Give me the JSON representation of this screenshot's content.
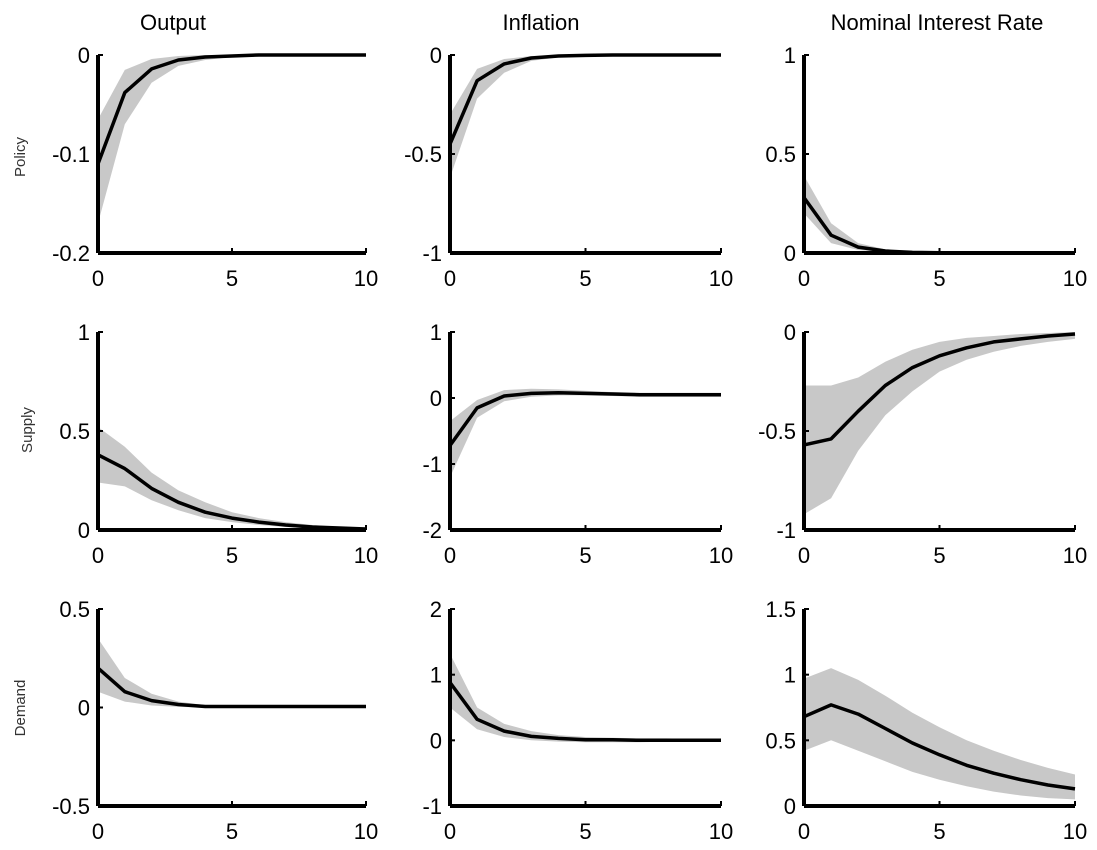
{
  "columns": [
    "Output",
    "Inflation",
    "Nominal Interest Rate"
  ],
  "rows": [
    "Policy",
    "Supply",
    "Demand"
  ],
  "colors": {
    "band": "#c8c8c8",
    "line": "#000000",
    "axis": "#000000"
  },
  "chart_data": [
    {
      "type": "area",
      "row": "Policy",
      "column": "Output",
      "ylim": [
        -0.2,
        0
      ],
      "yticks": [
        -0.2,
        -0.1,
        0
      ],
      "ytick_labels": [
        "-0.2",
        "-0.1",
        "0"
      ],
      "xlim": [
        0,
        10
      ],
      "xticks": [
        0,
        5,
        10
      ],
      "xtick_labels": [
        "0",
        "5",
        "10"
      ],
      "x": [
        0,
        1,
        2,
        3,
        4,
        5,
        6,
        7,
        8,
        9,
        10
      ],
      "median": [
        -0.11,
        -0.038,
        -0.014,
        -0.005,
        -0.002,
        -0.001,
        0,
        0,
        0,
        0,
        0
      ],
      "lower": [
        -0.17,
        -0.07,
        -0.028,
        -0.011,
        -0.005,
        -0.002,
        -0.001,
        0,
        0,
        0,
        0
      ],
      "upper": [
        -0.065,
        -0.015,
        -0.004,
        -0.001,
        0,
        0,
        0,
        0,
        0,
        0,
        0
      ]
    },
    {
      "type": "area",
      "row": "Policy",
      "column": "Inflation",
      "ylim": [
        -1,
        0
      ],
      "yticks": [
        -1,
        -0.5,
        0
      ],
      "ytick_labels": [
        "-1",
        "-0.5",
        "0"
      ],
      "xlim": [
        0,
        10
      ],
      "xticks": [
        0,
        5,
        10
      ],
      "xtick_labels": [
        "0",
        "5",
        "10"
      ],
      "x": [
        0,
        1,
        2,
        3,
        4,
        5,
        6,
        7,
        8,
        9,
        10
      ],
      "median": [
        -0.45,
        -0.13,
        -0.045,
        -0.015,
        -0.005,
        -0.002,
        0,
        0,
        0,
        0,
        0
      ],
      "lower": [
        -0.62,
        -0.22,
        -0.09,
        -0.03,
        -0.012,
        -0.004,
        -0.001,
        0,
        0,
        0,
        0
      ],
      "upper": [
        -0.3,
        -0.07,
        -0.02,
        -0.005,
        -0.001,
        0,
        0,
        0,
        0,
        0,
        0
      ]
    },
    {
      "type": "area",
      "row": "Policy",
      "column": "Nominal Interest Rate",
      "ylim": [
        0,
        1
      ],
      "yticks": [
        0,
        0.5,
        1
      ],
      "ytick_labels": [
        "0",
        "0.5",
        "1"
      ],
      "xlim": [
        0,
        10
      ],
      "xticks": [
        0,
        5,
        10
      ],
      "xtick_labels": [
        "0",
        "5",
        "10"
      ],
      "x": [
        0,
        1,
        2,
        3,
        4,
        5,
        6,
        7,
        8,
        9,
        10
      ],
      "median": [
        0.28,
        0.09,
        0.03,
        0.01,
        0.003,
        0.001,
        0,
        0,
        0,
        0,
        0
      ],
      "lower": [
        0.2,
        0.05,
        0.015,
        0.004,
        0.001,
        0,
        0,
        0,
        0,
        0,
        0
      ],
      "upper": [
        0.39,
        0.15,
        0.05,
        0.018,
        0.006,
        0.002,
        0.001,
        0,
        0,
        0,
        0
      ]
    },
    {
      "type": "area",
      "row": "Supply",
      "column": "Output",
      "ylim": [
        0,
        1
      ],
      "yticks": [
        0,
        0.5,
        1
      ],
      "ytick_labels": [
        "0",
        "0.5",
        "1"
      ],
      "xlim": [
        0,
        10
      ],
      "xticks": [
        0,
        5,
        10
      ],
      "xtick_labels": [
        "0",
        "5",
        "10"
      ],
      "x": [
        0,
        1,
        2,
        3,
        4,
        5,
        6,
        7,
        8,
        9,
        10
      ],
      "median": [
        0.38,
        0.31,
        0.21,
        0.14,
        0.09,
        0.06,
        0.04,
        0.025,
        0.015,
        0.01,
        0.005
      ],
      "lower": [
        0.24,
        0.22,
        0.15,
        0.1,
        0.06,
        0.04,
        0.025,
        0.015,
        0.008,
        0.004,
        0.002
      ],
      "upper": [
        0.52,
        0.42,
        0.29,
        0.2,
        0.14,
        0.09,
        0.06,
        0.04,
        0.025,
        0.015,
        0.01
      ]
    },
    {
      "type": "area",
      "row": "Supply",
      "column": "Inflation",
      "ylim": [
        -2,
        1
      ],
      "yticks": [
        -2,
        -1,
        0,
        1
      ],
      "ytick_labels": [
        "-2",
        "-1",
        "0",
        "1"
      ],
      "xlim": [
        0,
        10
      ],
      "xticks": [
        0,
        5,
        10
      ],
      "xtick_labels": [
        "0",
        "5",
        "10"
      ],
      "x": [
        0,
        1,
        2,
        3,
        4,
        5,
        6,
        7,
        8,
        9,
        10
      ],
      "median": [
        -0.72,
        -0.15,
        0.03,
        0.07,
        0.08,
        0.07,
        0.06,
        0.05,
        0.05,
        0.05,
        0.05
      ],
      "lower": [
        -1.2,
        -0.3,
        -0.05,
        0.02,
        0.04,
        0.04,
        0.03,
        0.02,
        0.02,
        0.02,
        0.02
      ],
      "upper": [
        -0.35,
        -0.03,
        0.12,
        0.14,
        0.13,
        0.11,
        0.09,
        0.08,
        0.08,
        0.08,
        0.08
      ]
    },
    {
      "type": "area",
      "row": "Supply",
      "column": "Nominal Interest Rate",
      "ylim": [
        -1,
        0
      ],
      "yticks": [
        -1,
        -0.5,
        0
      ],
      "ytick_labels": [
        "-1",
        "-0.5",
        "0"
      ],
      "xlim": [
        0,
        10
      ],
      "xticks": [
        0,
        5,
        10
      ],
      "xtick_labels": [
        "0",
        "5",
        "10"
      ],
      "x": [
        0,
        1,
        2,
        3,
        4,
        5,
        6,
        7,
        8,
        9,
        10
      ],
      "median": [
        -0.57,
        -0.54,
        -0.4,
        -0.27,
        -0.18,
        -0.12,
        -0.08,
        -0.05,
        -0.035,
        -0.02,
        -0.01
      ],
      "lower": [
        -0.92,
        -0.84,
        -0.6,
        -0.42,
        -0.3,
        -0.2,
        -0.14,
        -0.1,
        -0.07,
        -0.05,
        -0.035
      ],
      "upper": [
        -0.27,
        -0.27,
        -0.23,
        -0.15,
        -0.09,
        -0.05,
        -0.03,
        -0.02,
        -0.01,
        -0.005,
        0
      ]
    },
    {
      "type": "area",
      "row": "Demand",
      "column": "Output",
      "ylim": [
        -0.5,
        0.5
      ],
      "yticks": [
        -0.5,
        0,
        0.5
      ],
      "ytick_labels": [
        "-0.5",
        "0",
        "0.5"
      ],
      "xlim": [
        0,
        10
      ],
      "xticks": [
        0,
        5,
        10
      ],
      "xtick_labels": [
        "0",
        "5",
        "10"
      ],
      "x": [
        0,
        1,
        2,
        3,
        4,
        5,
        6,
        7,
        8,
        9,
        10
      ],
      "median": [
        0.2,
        0.08,
        0.035,
        0.015,
        0.005,
        0.005,
        0.005,
        0.005,
        0.005,
        0.005,
        0.005
      ],
      "lower": [
        0.08,
        0.03,
        0.01,
        0.003,
        0,
        0,
        0,
        0,
        0,
        0,
        0
      ],
      "upper": [
        0.35,
        0.15,
        0.07,
        0.03,
        0.012,
        0.008,
        0.008,
        0.008,
        0.008,
        0.008,
        0.008
      ]
    },
    {
      "type": "area",
      "row": "Demand",
      "column": "Inflation",
      "ylim": [
        -1,
        2
      ],
      "yticks": [
        -1,
        0,
        1,
        2
      ],
      "ytick_labels": [
        "-1",
        "0",
        "1",
        "2"
      ],
      "xlim": [
        0,
        10
      ],
      "xticks": [
        0,
        5,
        10
      ],
      "xtick_labels": [
        "0",
        "5",
        "10"
      ],
      "x": [
        0,
        1,
        2,
        3,
        4,
        5,
        6,
        7,
        8,
        9,
        10
      ],
      "median": [
        0.88,
        0.32,
        0.14,
        0.06,
        0.03,
        0.01,
        0.01,
        0,
        0,
        0,
        0
      ],
      "lower": [
        0.5,
        0.17,
        0.05,
        0,
        -0.02,
        -0.03,
        -0.03,
        -0.03,
        -0.02,
        -0.02,
        -0.02
      ],
      "upper": [
        1.32,
        0.5,
        0.25,
        0.14,
        0.08,
        0.05,
        0.04,
        0.03,
        0.03,
        0.02,
        0.02
      ]
    },
    {
      "type": "area",
      "row": "Demand",
      "column": "Nominal Interest Rate",
      "ylim": [
        0,
        1.5
      ],
      "yticks": [
        0,
        0.5,
        1,
        1.5
      ],
      "ytick_labels": [
        "0",
        "0.5",
        "1",
        "1.5"
      ],
      "xlim": [
        0,
        10
      ],
      "xticks": [
        0,
        5,
        10
      ],
      "xtick_labels": [
        "0",
        "5",
        "10"
      ],
      "x": [
        0,
        1,
        2,
        3,
        4,
        5,
        6,
        7,
        8,
        9,
        10
      ],
      "median": [
        0.68,
        0.77,
        0.7,
        0.59,
        0.48,
        0.39,
        0.31,
        0.25,
        0.2,
        0.16,
        0.13
      ],
      "lower": [
        0.42,
        0.5,
        0.42,
        0.34,
        0.26,
        0.2,
        0.15,
        0.11,
        0.08,
        0.06,
        0.05
      ],
      "upper": [
        0.97,
        1.05,
        0.96,
        0.84,
        0.71,
        0.6,
        0.5,
        0.42,
        0.35,
        0.29,
        0.24
      ]
    }
  ]
}
